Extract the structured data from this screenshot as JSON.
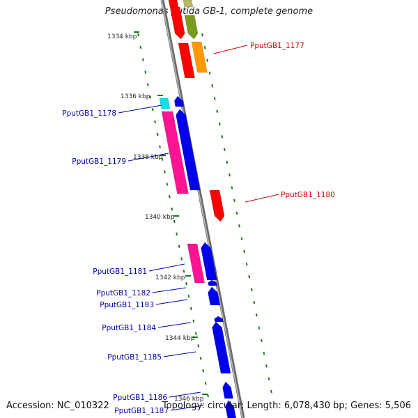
{
  "title": "Pseudomonas putida GB-1, complete genome",
  "accession": "Accession: NC_010322",
  "summary": "Topology: circular; Length: 6,078,430 bp; Genes: 5,506",
  "colors": {
    "red": "#ff0000",
    "olive": "#7a9a1e",
    "orange": "#ff9900",
    "cyan": "#00e5e5",
    "blue": "#0000ee",
    "pink": "#ff1493",
    "backbone": "#888888",
    "tick": "#1b7a1b",
    "label_red": "#d00000",
    "label_blue": "#0000aa"
  },
  "scale_labels": [
    {
      "text": "1334 kbp"
    },
    {
      "text": "1336 kbp"
    },
    {
      "text": "1338 kbp"
    },
    {
      "text": "1340 kbp"
    },
    {
      "text": "1342 kbp"
    },
    {
      "text": "1344 kbp"
    },
    {
      "text": "1346 kbp"
    }
  ],
  "gene_labels": [
    {
      "name": "PputGB1_1177",
      "color": "red"
    },
    {
      "name": "PputGB1_1178",
      "color": "blue"
    },
    {
      "name": "PputGB1_1179",
      "color": "blue"
    },
    {
      "name": "PputGB1_1180",
      "color": "red"
    },
    {
      "name": "PputGB1_1181",
      "color": "blue"
    },
    {
      "name": "PputGB1_1182",
      "color": "blue"
    },
    {
      "name": "PputGB1_1183",
      "color": "blue"
    },
    {
      "name": "PputGB1_1184",
      "color": "blue"
    },
    {
      "name": "PputGB1_1185",
      "color": "blue"
    },
    {
      "name": "PputGB1_1186",
      "color": "blue"
    },
    {
      "name": "PputGB1_1187",
      "color": "blue"
    }
  ]
}
